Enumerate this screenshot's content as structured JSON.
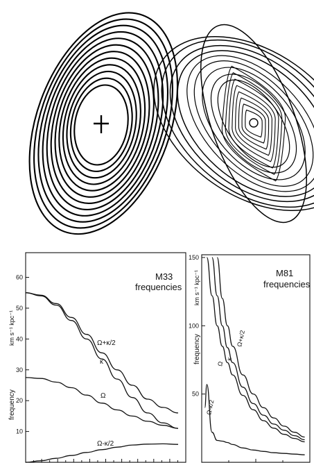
{
  "figure": {
    "panels": [
      "nested-ellipses-orbits",
      "twisted-orbits",
      "M33 frequencies",
      "M81 frequencies"
    ]
  },
  "orbit_diagrams": [
    {
      "name": "nested-ellipses",
      "ellipse_count": 12,
      "center_marker": "plus"
    },
    {
      "name": "twisted-orbits",
      "ellipse_count": 18,
      "center_marker": "circle"
    }
  ],
  "chart_data": [
    {
      "type": "line",
      "title": "M33",
      "subtitle": "frequencies",
      "ylabel": "frequency",
      "yunit": "km s⁻¹ kpc⁻¹",
      "ylim": [
        0,
        68
      ],
      "yticks": [
        10,
        20,
        30,
        40,
        50,
        60
      ],
      "x": [
        0,
        1,
        2,
        3,
        4,
        5,
        6,
        7,
        8,
        9,
        10
      ],
      "xlim": [
        0,
        10.5
      ],
      "series": [
        {
          "name": "Ω+κ/2",
          "values": [
            55,
            54.2,
            51.5,
            47,
            41.5,
            35.5,
            30,
            25,
            20.5,
            17.8,
            16
          ]
        },
        {
          "name": "κ",
          "values": [
            55,
            54,
            51,
            46,
            40,
            33.5,
            27,
            21,
            16,
            12.8,
            11
          ]
        },
        {
          "name": "Ω",
          "values": [
            27.5,
            27.2,
            26,
            24.2,
            21.8,
            19.2,
            17,
            15,
            13.3,
            12,
            11
          ]
        },
        {
          "name": "Ω-κ/2",
          "values": [
            0,
            0.5,
            1.3,
            2.2,
            3.2,
            4.1,
            4.9,
            5.6,
            5.9,
            6,
            5.8
          ]
        }
      ]
    },
    {
      "type": "line",
      "title": "M81",
      "subtitle": "frequencies",
      "ylabel": "frequency",
      "yunit": "km s⁻¹ kpc⁻¹",
      "ylim": [
        0,
        152
      ],
      "yticks": [
        50,
        100,
        150
      ],
      "x": [
        0.3,
        0.5,
        1,
        1.5,
        2,
        2.5,
        3,
        4,
        5,
        6,
        7,
        8,
        9,
        10
      ],
      "xlim": [
        0,
        10.5
      ],
      "series": [
        {
          "name": "Ω+κ/2",
          "values": [
            null,
            null,
            null,
            150,
            120,
            100,
            85,
            64,
            50,
            40,
            32.5,
            26.5,
            22,
            18.5
          ]
        },
        {
          "name": "κ",
          "values": [
            null,
            null,
            150,
            122,
            100,
            84,
            73,
            55,
            43,
            34.5,
            28,
            23.5,
            19.5,
            16.5
          ]
        },
        {
          "name": "Ω",
          "values": [
            null,
            150,
            122,
            100,
            85,
            73,
            64,
            49,
            38.5,
            30.5,
            25,
            20.5,
            17.5,
            15
          ]
        },
        {
          "name": "Ω-κ/2",
          "values": [
            40,
            57,
            22,
            16,
            15.5,
            14.5,
            13,
            10.5,
            9,
            8,
            7,
            6.5,
            6,
            5.5
          ]
        }
      ]
    }
  ]
}
